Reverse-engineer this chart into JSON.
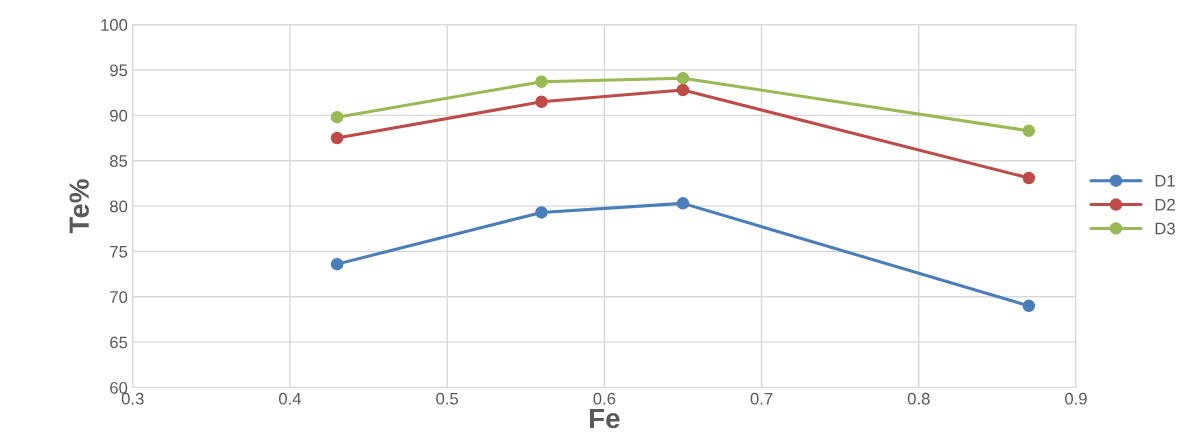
{
  "chart_data": {
    "type": "line",
    "xlabel": "Fe",
    "ylabel": "Te%",
    "x": [
      0.43,
      0.56,
      0.65,
      0.87
    ],
    "series": [
      {
        "name": "D1",
        "color": "#4a7ebb",
        "values": [
          73.6,
          79.3,
          80.3,
          69.0
        ]
      },
      {
        "name": "D2",
        "color": "#be4b48",
        "values": [
          87.5,
          91.5,
          92.8,
          83.1
        ]
      },
      {
        "name": "D3",
        "color": "#98b954",
        "values": [
          89.8,
          93.7,
          94.1,
          88.3
        ]
      }
    ],
    "xlim": [
      0.3,
      0.9
    ],
    "xticks": [
      0.3,
      0.4,
      0.5,
      0.6,
      0.7,
      0.8,
      0.9
    ],
    "ylim": [
      60,
      100
    ],
    "yticks": [
      60,
      65,
      70,
      75,
      80,
      85,
      90,
      95,
      100
    ],
    "grid": true,
    "legend": "right",
    "marker": "circle",
    "line_style": "solid"
  }
}
